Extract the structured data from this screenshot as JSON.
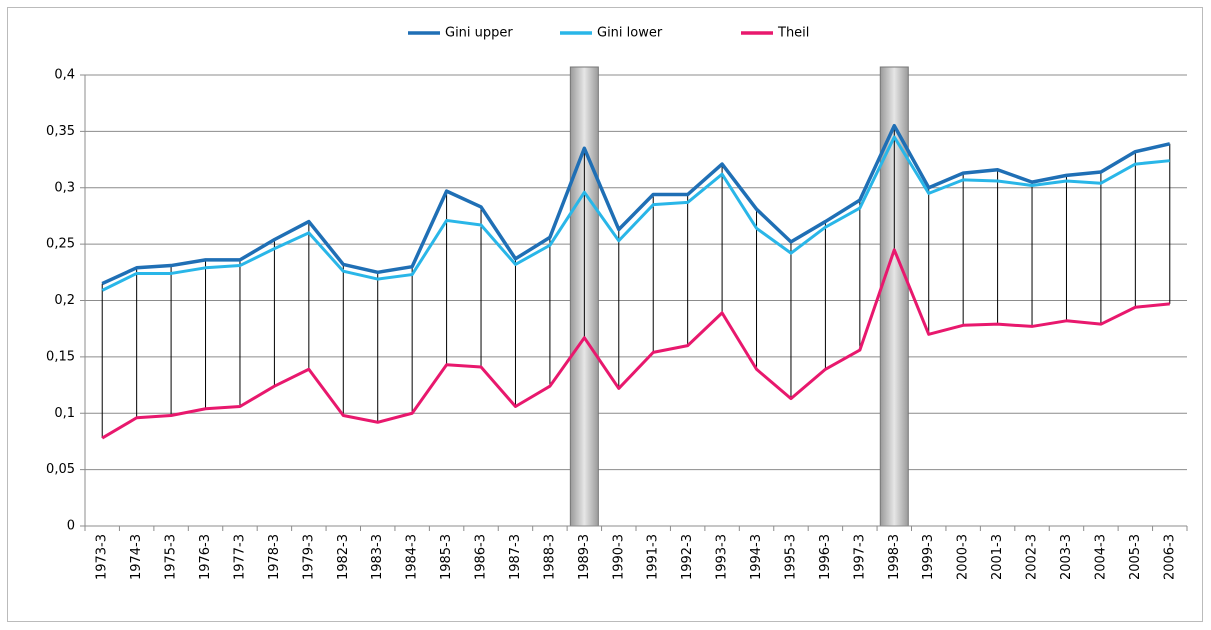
{
  "chart_data": {
    "type": "line",
    "categories": [
      "1973-3",
      "1974-3",
      "1975-3",
      "1976-3",
      "1977-3",
      "1978-3",
      "1979-3",
      "1982-3",
      "1983-3",
      "1984-3",
      "1985-3",
      "1986-3",
      "1987-3",
      "1988-3",
      "1989-3",
      "1990-3",
      "1991-3",
      "1992-3",
      "1993-3",
      "1994-3",
      "1995-3",
      "1996-3",
      "1997-3",
      "1998-3",
      "1999-3",
      "2000-3",
      "2001-3",
      "2002-3",
      "2003-3",
      "2004-3",
      "2005-3",
      "2006-3"
    ],
    "series": [
      {
        "name": "Gini upper",
        "color": "#1f6fb5",
        "values": [
          0.215,
          0.229,
          0.231,
          0.236,
          0.236,
          0.254,
          0.27,
          0.232,
          0.225,
          0.23,
          0.297,
          0.283,
          0.237,
          0.256,
          0.335,
          0.263,
          0.294,
          0.294,
          0.321,
          0.281,
          0.252,
          0.27,
          0.289,
          0.355,
          0.3,
          0.313,
          0.316,
          0.305,
          0.311,
          0.314,
          0.332,
          0.339
        ]
      },
      {
        "name": "Gini lower",
        "color": "#29b6e8",
        "values": [
          0.209,
          0.224,
          0.224,
          0.229,
          0.231,
          0.246,
          0.26,
          0.226,
          0.219,
          0.223,
          0.271,
          0.267,
          0.232,
          0.249,
          0.296,
          0.253,
          0.285,
          0.287,
          0.312,
          0.264,
          0.242,
          0.265,
          0.282,
          0.345,
          0.295,
          0.307,
          0.306,
          0.302,
          0.306,
          0.304,
          0.321,
          0.324
        ]
      },
      {
        "name": "Theil",
        "color": "#e8186d",
        "values": [
          0.078,
          0.096,
          0.098,
          0.104,
          0.106,
          0.124,
          0.139,
          0.098,
          0.092,
          0.1,
          0.143,
          0.141,
          0.106,
          0.124,
          0.167,
          0.122,
          0.154,
          0.16,
          0.189,
          0.139,
          0.113,
          0.139,
          0.156,
          0.245,
          0.17,
          0.178,
          0.179,
          0.177,
          0.182,
          0.179,
          0.194,
          0.197
        ]
      }
    ],
    "highlight_categories": [
      "1989-3",
      "1998-3"
    ],
    "ylim": [
      0,
      0.4
    ],
    "yticks": [
      0,
      {
        "value": 0.05,
        "label": "0,05"
      },
      {
        "value": 0.1,
        "label": "0,1"
      },
      {
        "value": 0.15,
        "label": "0,15"
      },
      {
        "value": 0.2,
        "label": "0,2"
      },
      {
        "value": 0.25,
        "label": "0,25"
      },
      {
        "value": 0.3,
        "label": "0,3"
      },
      {
        "value": 0.35,
        "label": "0,35"
      },
      {
        "value": 0.4,
        "label": "0,4"
      }
    ],
    "grid": true,
    "legend": "top"
  }
}
